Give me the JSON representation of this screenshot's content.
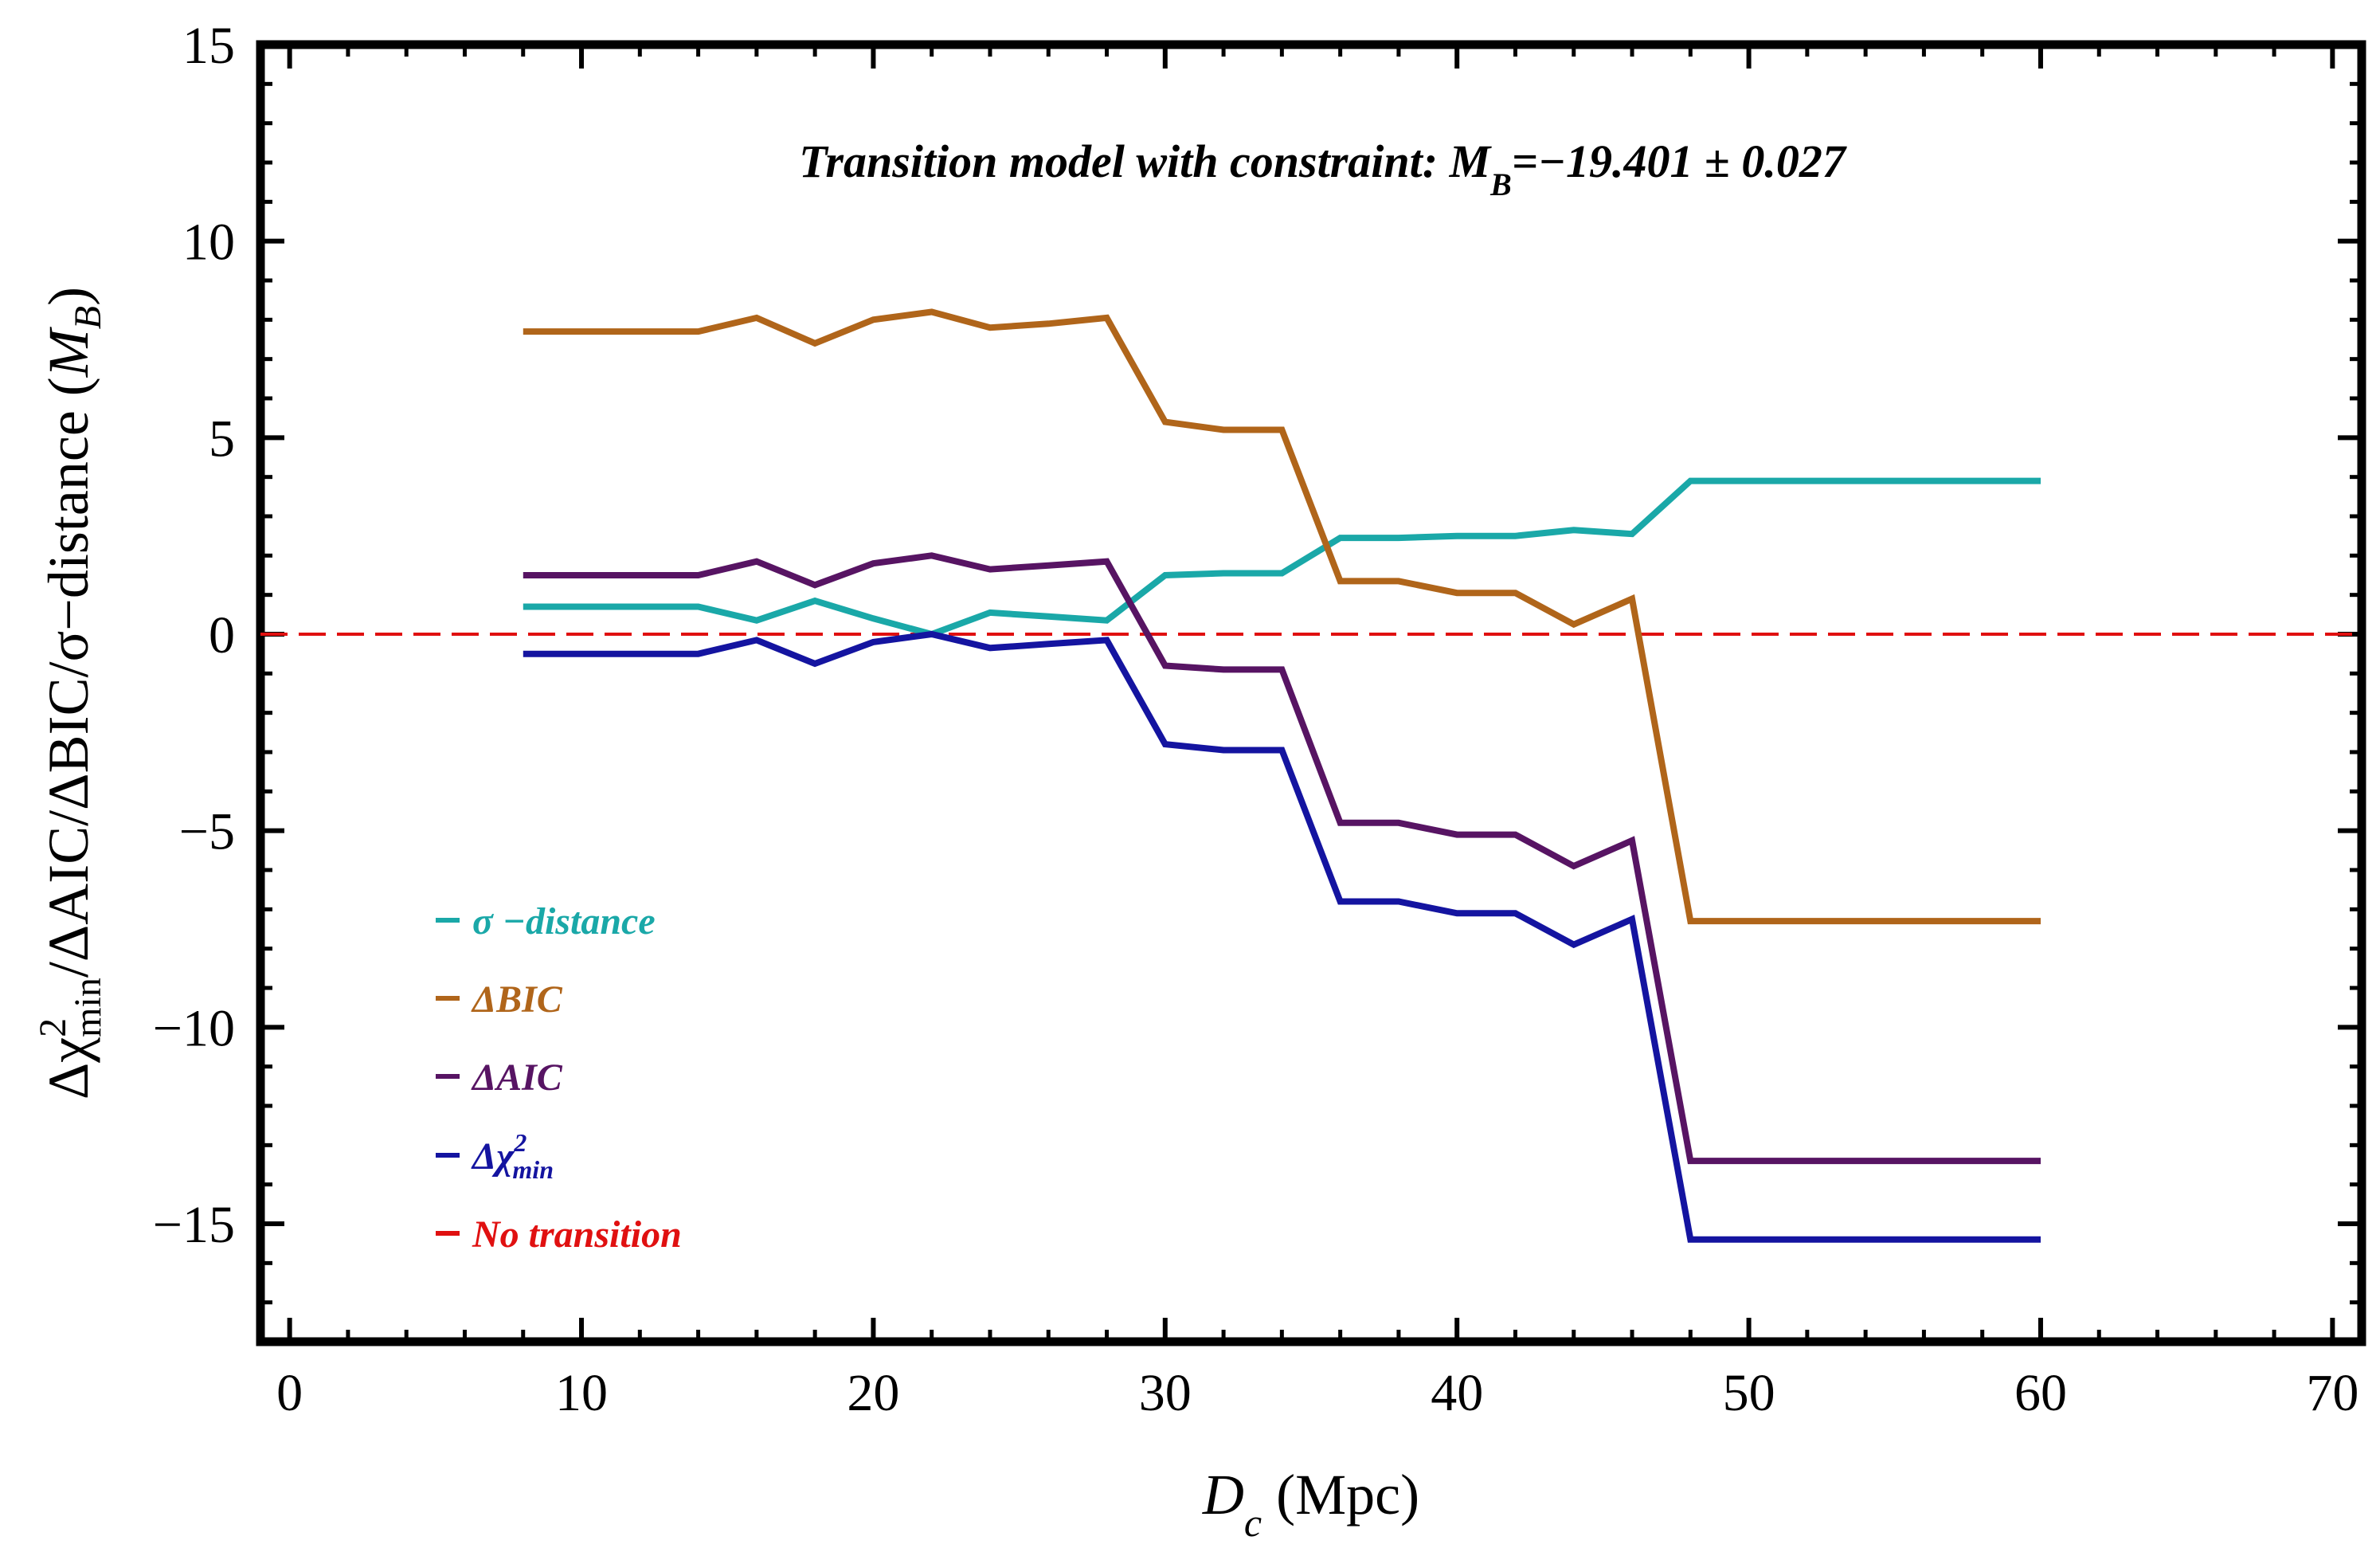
{
  "chart_data": {
    "type": "line",
    "title": {
      "prefix": "Transition model with constraint: M",
      "sub": "B",
      "suffix": "=−19.401 ± 0.027"
    },
    "xlabel": {
      "var": "D",
      "sub": "c",
      "unit": " (Mpc)"
    },
    "ylabel": {
      "delta": "Δχ",
      "sup": "2",
      "sub": "min",
      "rest": "/ΔAIC/ΔBIC/σ−distance (",
      "mb": "M",
      "mbsub": "B",
      "close": ")"
    },
    "xlim": [
      -1,
      71
    ],
    "ylim": [
      -18,
      15
    ],
    "xticks": [
      0,
      10,
      20,
      30,
      40,
      50,
      60,
      70
    ],
    "xtick_labels": [
      "0",
      "10",
      "20",
      "30",
      "40",
      "50",
      "60",
      "70"
    ],
    "yticks": [
      -15,
      -10,
      -5,
      0,
      5,
      10,
      15
    ],
    "ytick_labels": [
      "−15",
      "−10",
      "−5",
      "0",
      "5",
      "10",
      "15"
    ],
    "grid": false,
    "legend_position": "bottom-left",
    "x": [
      8,
      10,
      12,
      14,
      16,
      18,
      20,
      22,
      24,
      26,
      28,
      30,
      32,
      34,
      36,
      38,
      40,
      42,
      44,
      46,
      48,
      50,
      52,
      54,
      56,
      58,
      60
    ],
    "series": [
      {
        "name": "σ−distance",
        "color": "#1aa8a8",
        "values": [
          0.7,
          0.7,
          0.7,
          0.7,
          0.35,
          0.85,
          0.4,
          0.0,
          0.55,
          0.45,
          0.35,
          1.5,
          1.55,
          1.55,
          2.45,
          2.45,
          2.5,
          2.5,
          2.65,
          2.55,
          3.9,
          3.9,
          3.9,
          3.9,
          3.9,
          3.9,
          3.9
        ]
      },
      {
        "name": "ΔBIC",
        "color": "#b0651a",
        "values": [
          7.7,
          7.7,
          7.7,
          7.7,
          8.05,
          7.4,
          8.0,
          8.2,
          7.8,
          7.9,
          8.05,
          5.4,
          5.2,
          5.2,
          1.35,
          1.35,
          1.05,
          1.05,
          0.25,
          0.9,
          -7.3,
          -7.3,
          -7.3,
          -7.3,
          -7.3,
          -7.3,
          -7.3
        ]
      },
      {
        "name": "ΔAIC",
        "color": "#571463",
        "values": [
          1.5,
          1.5,
          1.5,
          1.5,
          1.85,
          1.25,
          1.8,
          2.0,
          1.65,
          1.75,
          1.85,
          -0.8,
          -0.9,
          -0.9,
          -4.8,
          -4.8,
          -5.1,
          -5.1,
          -5.9,
          -5.25,
          -13.4,
          -13.4,
          -13.4,
          -13.4,
          -13.4,
          -13.4,
          -13.4
        ]
      },
      {
        "name": "Δχ²min",
        "color": "#1414a0",
        "values": [
          -0.5,
          -0.5,
          -0.5,
          -0.5,
          -0.15,
          -0.75,
          -0.2,
          0.0,
          -0.35,
          -0.25,
          -0.15,
          -2.8,
          -2.95,
          -2.95,
          -6.8,
          -6.8,
          -7.1,
          -7.1,
          -7.9,
          -7.25,
          -15.4,
          -15.4,
          -15.4,
          -15.4,
          -15.4,
          -15.4,
          -15.4
        ]
      }
    ],
    "reference_line": {
      "name": "No transition",
      "y": 0,
      "color": "#e01010",
      "style": "dashed"
    },
    "legend": [
      {
        "label": "σ −distance",
        "color": "#1aa8a8"
      },
      {
        "label": "ΔBIC",
        "color": "#b0651a"
      },
      {
        "label": "ΔAIC",
        "color": "#571463"
      },
      {
        "label": "Δχ",
        "sup": "2",
        "sub": "min",
        "color": "#1414a0"
      },
      {
        "label": "No transition",
        "color": "#e01010"
      }
    ]
  }
}
